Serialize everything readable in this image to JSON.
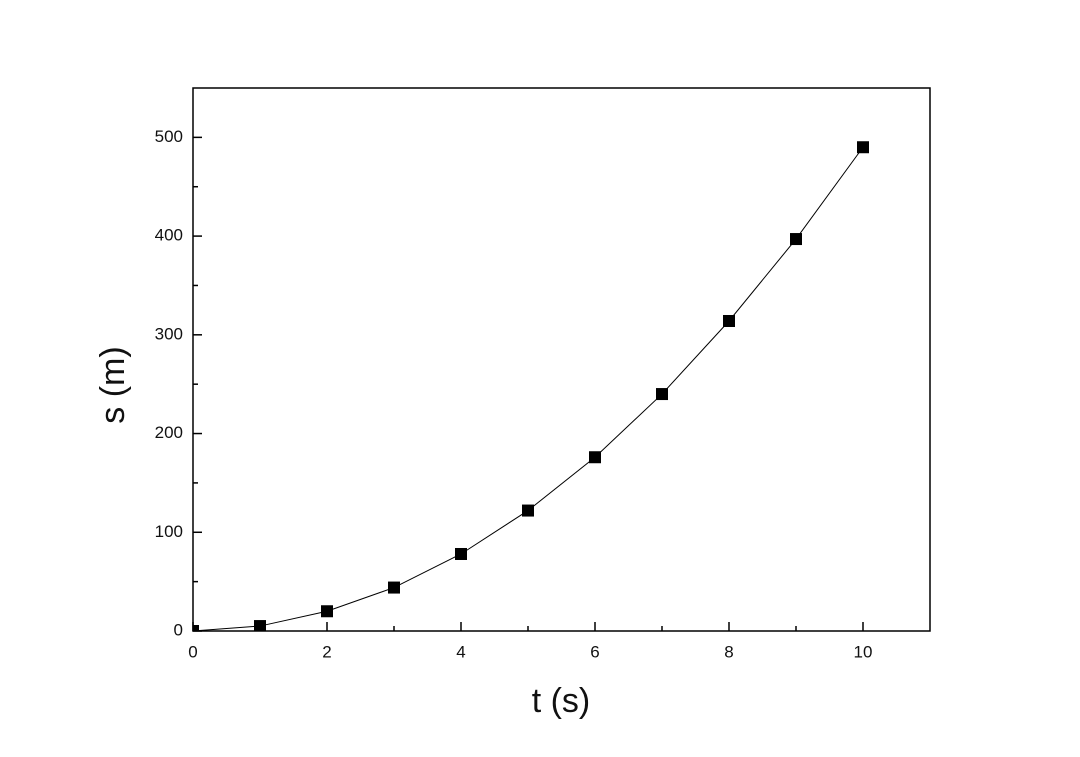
{
  "chart_data": {
    "type": "scatter",
    "x_label": "t (s)",
    "y_label": "s (m)",
    "series": [
      {
        "color": "#000000",
        "x": [
          0,
          1,
          2,
          3,
          4,
          5,
          6,
          7,
          8,
          9,
          10
        ],
        "values": [
          0,
          5,
          20,
          44,
          78,
          122,
          176,
          240,
          314,
          397,
          490
        ]
      }
    ],
    "xlim": [
      0,
      11
    ],
    "ylim": [
      0,
      550
    ],
    "xticks": [
      0,
      2,
      4,
      6,
      8,
      10
    ],
    "yticks": [
      0,
      100,
      200,
      300,
      400,
      500
    ],
    "xminorticks": [
      1,
      3,
      5,
      7,
      9
    ],
    "yminorticks": [
      50,
      150,
      250,
      350,
      450
    ],
    "grid": false,
    "line": true
  }
}
